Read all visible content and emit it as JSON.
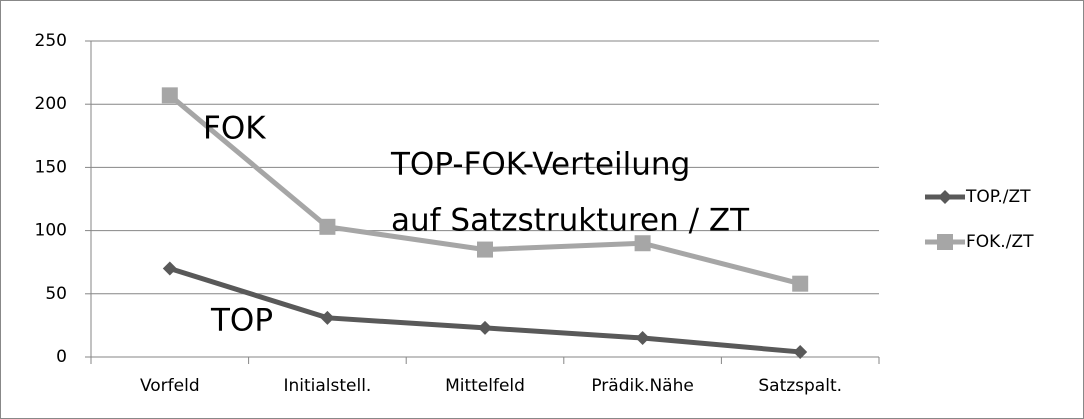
{
  "chart_data": {
    "type": "line",
    "title": [
      "TOP-FOK-Verteilung",
      "auf Satzstrukturen / ZT"
    ],
    "annotations": [
      "FOK",
      "TOP"
    ],
    "categories": [
      "Vorfeld",
      "Initialstell.",
      "Mittelfeld",
      "Prädik.Nähe",
      "Satzspalt."
    ],
    "series": [
      {
        "name": "TOP./ZT",
        "color": "#595959",
        "marker": "diamond",
        "values": [
          70,
          31,
          23,
          15,
          4
        ]
      },
      {
        "name": "FOK./ZT",
        "color": "#a6a6a6",
        "marker": "square",
        "values": [
          207,
          103,
          85,
          90,
          58
        ]
      }
    ],
    "ylim": [
      0,
      250
    ],
    "yticks": [
      0,
      50,
      100,
      150,
      200,
      250
    ],
    "grid": true,
    "legend": "right"
  }
}
